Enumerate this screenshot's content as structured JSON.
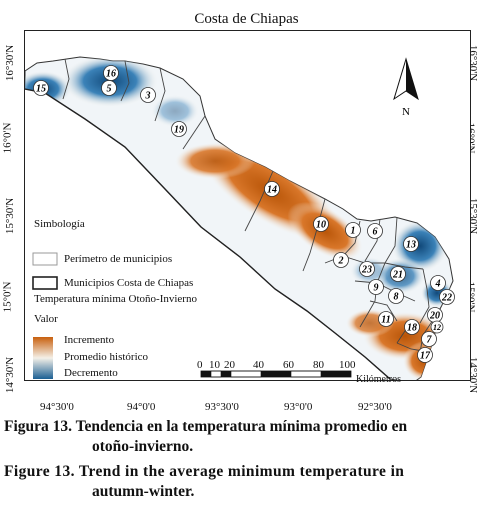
{
  "map": {
    "title": "Costa de Chiapas",
    "longitude_labels": [
      "94°30'0",
      "94°0'0",
      "93°30'0",
      "93°0'0",
      "92°30'0"
    ],
    "latitude_labels": [
      "16°30'N",
      "16°0'N",
      "15°30'N",
      "15°0'N",
      "14°30'N"
    ],
    "north_label": "N",
    "municipality_numbers": [
      "15",
      "16",
      "5",
      "3",
      "19",
      "14",
      "10",
      "1",
      "6",
      "13",
      "2",
      "23",
      "21",
      "4",
      "22",
      "9",
      "8",
      "11",
      "18",
      "20",
      "7",
      "12",
      "17"
    ]
  },
  "legend": {
    "title": "Simbología",
    "perimeter_label": "Perímetro de municipios",
    "coast_label": "Municipios Costa de Chiapas",
    "layer_title": "Temperatura mínima Otoño-Invierno",
    "value_label": "Valor",
    "increase_label": "Incremento",
    "historical_label": "Promedio histórico",
    "decrease_label": "Decremento",
    "colors": {
      "increase": "#c8600e",
      "historical": "#f4f0e8",
      "decrease": "#1b5f93"
    }
  },
  "scale_bar": {
    "ticks": [
      "0",
      "10",
      "20",
      "40",
      "60",
      "80",
      "100"
    ],
    "unit": "Kilómetros"
  },
  "caption": {
    "spanish_line1": "Figura 13. Tendencia en la temperatura mínima promedio en",
    "spanish_line2": "otoño-invierno.",
    "english_line1": "Figure 13. Trend in the average minimum temperature in",
    "english_line2": "autumn-winter."
  }
}
